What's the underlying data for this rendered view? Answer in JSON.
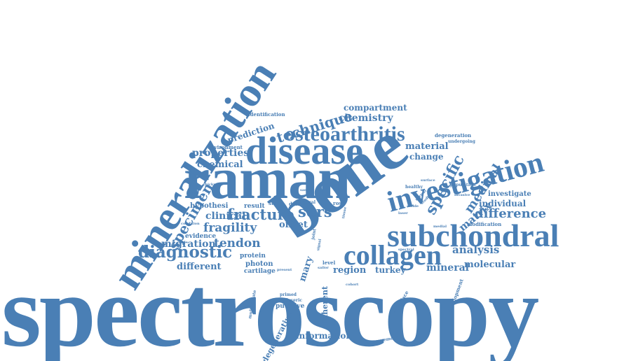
{
  "cloud": {
    "color": "#4a7fb5",
    "words": {
      "spectroscopy": "spectroscopy",
      "bone": "bone",
      "raman": "raman",
      "mineralization": "mineralization",
      "disease": "disease",
      "subchondral": "subchondral",
      "investigation": "investigation",
      "collagen": "collagen",
      "osteoarthritis": "osteoarthritis",
      "diagnostic": "diagnostic",
      "specimen": "specimen",
      "specific": "specific",
      "technique": "technique",
      "fracture": "fracture",
      "sors": "sors",
      "difference": "difference",
      "fragility": "fragility",
      "tendon": "tendon",
      "analysis": "analysis",
      "matrix": "matrix",
      "medical": "medical",
      "properties": "properties",
      "chemical": "chemical",
      "chemistry": "chemistry",
      "compartment": "compartment",
      "prediction": "prediction",
      "material": "material",
      "change": "change",
      "clinical": "clinical",
      "offset": "offset",
      "migration": "migration",
      "different": "different",
      "region": "region",
      "mineral": "mineral",
      "molecular": "molecular",
      "individual": "individual",
      "investigate": "investigate",
      "information": "information",
      "degenerative": "degenerative",
      "turkey": "turkey",
      "mary": "mary",
      "inherent": "inherent",
      "putative": "putative",
      "cartilage": "cartilage",
      "photon": "photon",
      "protein": "protein",
      "evidence": "evidence",
      "hypothesi": "hypothesi",
      "result": "result",
      "study": "study",
      "data": "data",
      "environment": "environment",
      "identification": "identification",
      "degeneration": "degeneration",
      "undergoing": "undergoing",
      "modification": "modification",
      "population": "population",
      "healthy": "healthy",
      "surface": "surface",
      "invasive": "invasive",
      "laser": "laser",
      "amide": "amide",
      "medial": "medial",
      "normal": "normal",
      "studies": "studies",
      "interface": "interface",
      "development": "development",
      "measurement": "measurement",
      "primed": "primed",
      "cadaveric": "cadaveric",
      "sailor": "sailor",
      "cohort": "cohort",
      "multivariate": "multivariate",
      "thickness": "thickness",
      "condition": "condition",
      "lateral": "lateral",
      "rose": "rose",
      "level": "level",
      "spectral": "spectral",
      "present": "present",
      "signal": "signal",
      "joint": "joint",
      "sample": "sample",
      "tissue": "tissue"
    }
  }
}
